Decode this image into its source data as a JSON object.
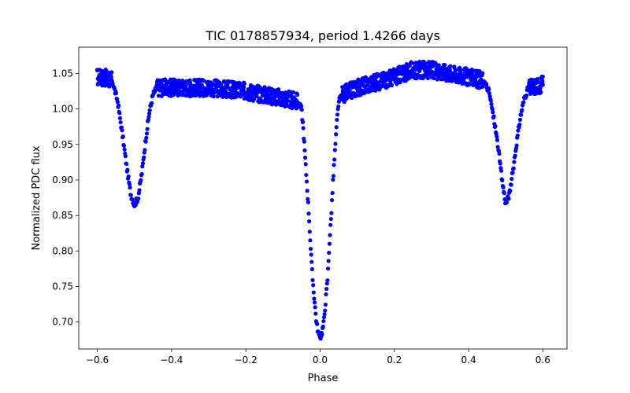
{
  "chart_data": {
    "type": "scatter",
    "title": "TIC 0178857934, period 1.4266 days",
    "xlabel": "Phase",
    "ylabel": "Normalized PDC flux",
    "xlim": [
      -0.65,
      0.665
    ],
    "ylim": [
      0.662,
      1.087
    ],
    "grid": false,
    "marker_color": "#0000ff",
    "x_ticks": [
      -0.6,
      -0.4,
      -0.2,
      0.0,
      0.2,
      0.4,
      0.6
    ],
    "x_tick_labels": [
      "−0.6",
      "−0.4",
      "−0.2",
      "0.0",
      "0.2",
      "0.4",
      "0.6"
    ],
    "y_ticks": [
      0.7,
      0.75,
      0.8,
      0.85,
      0.9,
      0.95,
      1.0,
      1.05
    ],
    "y_tick_labels": [
      "0.70",
      "0.75",
      "0.80",
      "0.85",
      "0.90",
      "0.95",
      "1.00",
      "1.05"
    ],
    "curve": {
      "x": [
        -0.6,
        -0.58,
        -0.56,
        -0.545,
        -0.53,
        -0.52,
        -0.51,
        -0.5,
        -0.49,
        -0.48,
        -0.47,
        -0.46,
        -0.45,
        -0.44,
        -0.4,
        -0.3,
        -0.2,
        -0.1,
        -0.06,
        -0.05,
        -0.045,
        -0.04,
        -0.035,
        -0.03,
        -0.025,
        -0.02,
        -0.015,
        -0.01,
        -0.005,
        0.0,
        0.005,
        0.01,
        0.015,
        0.02,
        0.025,
        0.03,
        0.035,
        0.04,
        0.045,
        0.05,
        0.06,
        0.1,
        0.2,
        0.25,
        0.3,
        0.4,
        0.44,
        0.455,
        0.47,
        0.48,
        0.49,
        0.5,
        0.51,
        0.52,
        0.53,
        0.54,
        0.55,
        0.56,
        0.57,
        0.58,
        0.6
      ],
      "y": [
        1.045,
        1.044,
        1.04,
        1.01,
        0.955,
        0.915,
        0.88,
        0.865,
        0.875,
        0.91,
        0.955,
        0.995,
        1.02,
        1.03,
        1.03,
        1.03,
        1.025,
        1.015,
        1.01,
        1.0,
        0.97,
        0.93,
        0.89,
        0.85,
        0.8,
        0.76,
        0.73,
        0.7,
        0.685,
        0.678,
        0.685,
        0.7,
        0.73,
        0.76,
        0.81,
        0.85,
        0.9,
        0.94,
        0.98,
        1.01,
        1.02,
        1.03,
        1.045,
        1.055,
        1.055,
        1.045,
        1.04,
        1.025,
        0.98,
        0.945,
        0.9,
        0.866,
        0.88,
        0.915,
        0.955,
        0.99,
        1.015,
        1.028,
        1.03,
        1.032,
        1.035
      ]
    }
  }
}
